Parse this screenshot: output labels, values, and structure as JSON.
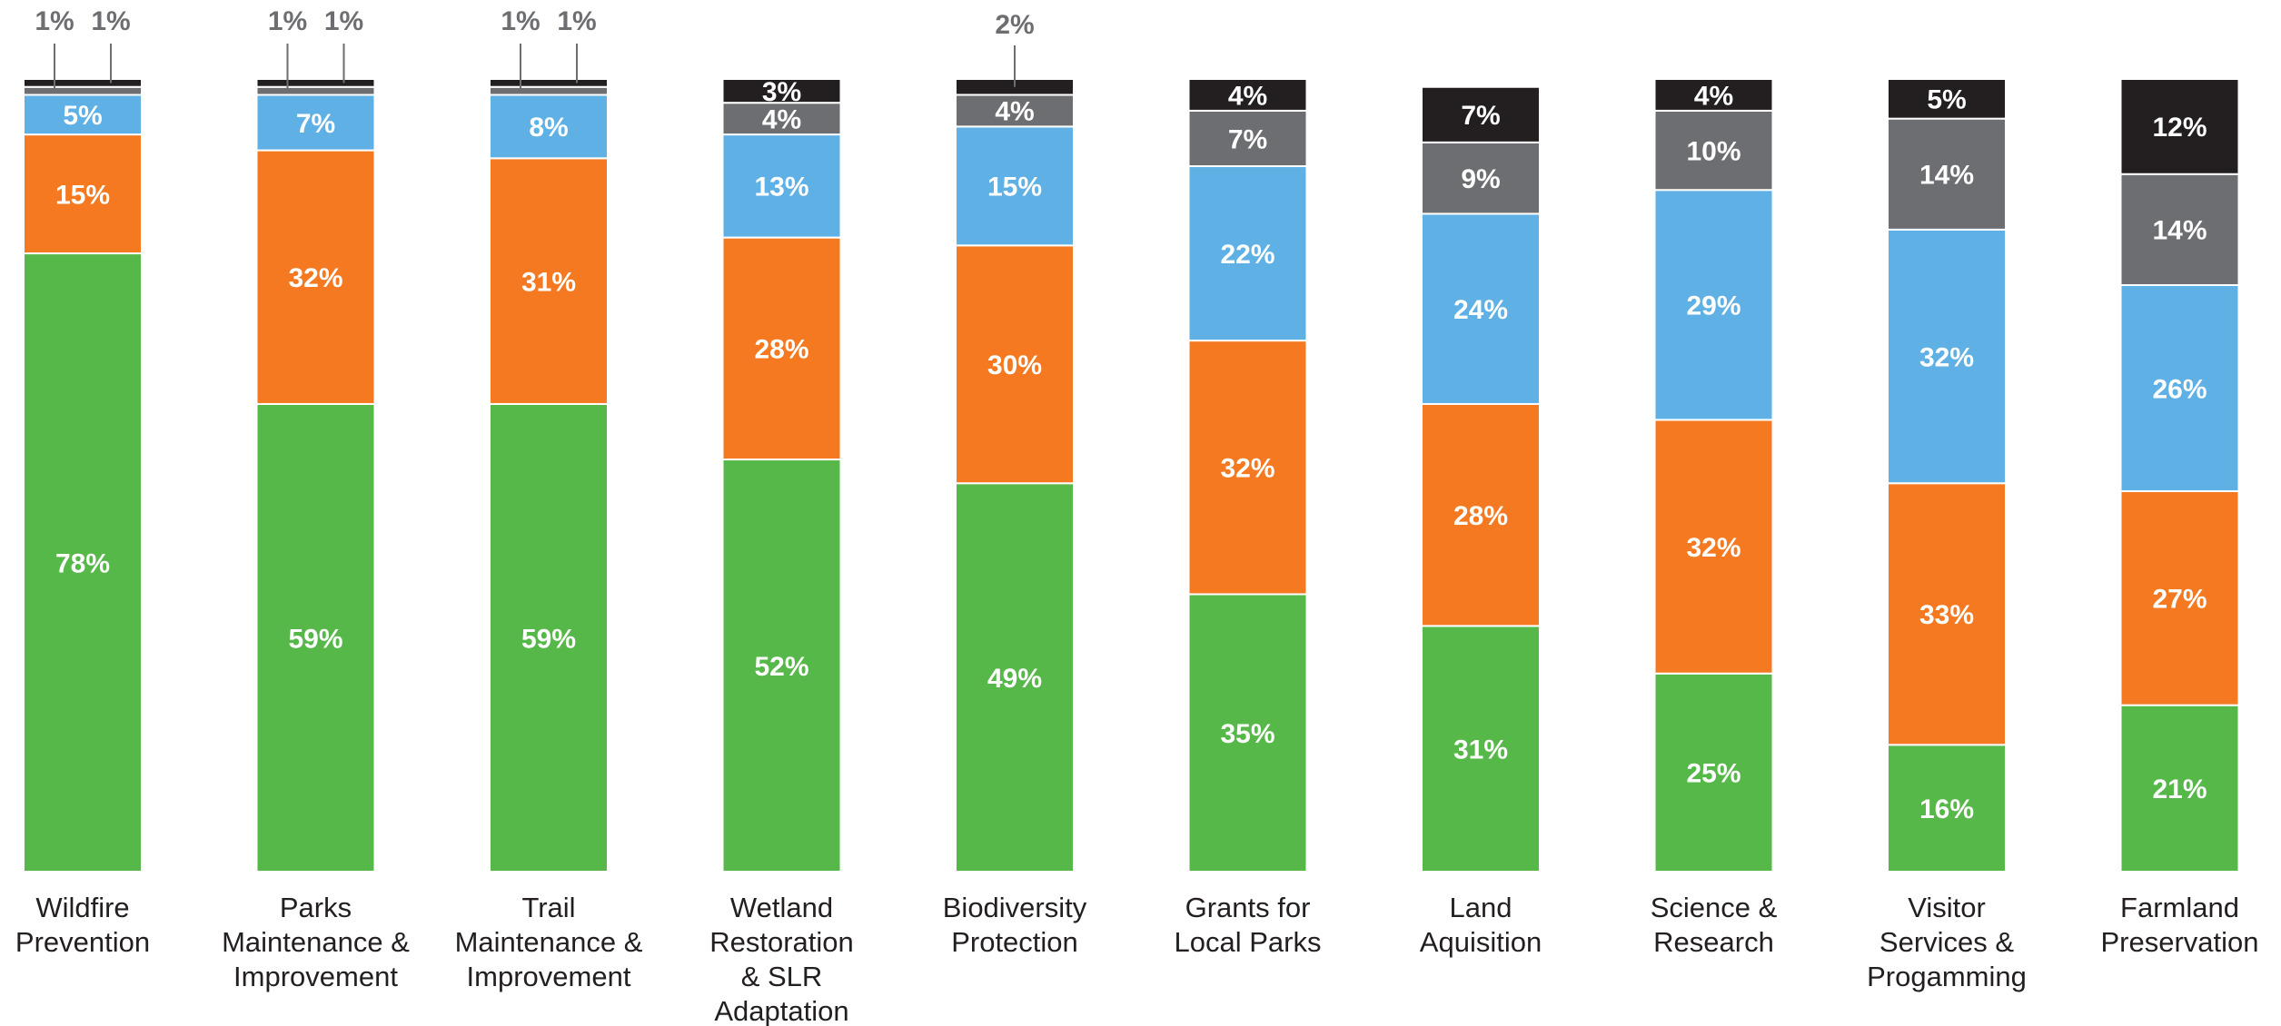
{
  "chart_data": {
    "type": "bar",
    "stacked": true,
    "percent": true,
    "title": "",
    "xlabel": "",
    "ylabel": "",
    "ylim": [
      0,
      100
    ],
    "grid": false,
    "legend": "none",
    "categories": [
      {
        "lines": [
          "Wildfire",
          "Prevention"
        ]
      },
      {
        "lines": [
          "Parks",
          "Maintenance &",
          "Improvement"
        ]
      },
      {
        "lines": [
          "Trail",
          "Maintenance &",
          "Improvement"
        ]
      },
      {
        "lines": [
          "Wetland",
          "Restoration",
          "& SLR",
          "Adaptation"
        ]
      },
      {
        "lines": [
          "Biodiversity",
          "Protection"
        ]
      },
      {
        "lines": [
          "Grants for",
          "Local Parks"
        ]
      },
      {
        "lines": [
          "Land",
          "Aquisition"
        ]
      },
      {
        "lines": [
          "Science &",
          "Research"
        ]
      },
      {
        "lines": [
          "Visitor",
          "Services &",
          "Progamming"
        ]
      },
      {
        "lines": [
          "Farmland",
          "Preservation"
        ]
      }
    ],
    "series": [
      {
        "color": "#56b848",
        "values": [
          78,
          59,
          59,
          52,
          49,
          35,
          31,
          25,
          16,
          21
        ]
      },
      {
        "color": "#f47920",
        "values": [
          15,
          32,
          31,
          28,
          30,
          32,
          28,
          32,
          33,
          27
        ]
      },
      {
        "color": "#5eb0e5",
        "values": [
          5,
          7,
          8,
          13,
          15,
          22,
          24,
          29,
          32,
          26
        ]
      },
      {
        "color": "#6d6e71",
        "values": [
          1,
          1,
          1,
          4,
          4,
          7,
          9,
          10,
          14,
          14
        ]
      },
      {
        "color": "#231f20",
        "values": [
          1,
          1,
          1,
          3,
          2,
          4,
          7,
          4,
          5,
          12
        ]
      }
    ]
  }
}
